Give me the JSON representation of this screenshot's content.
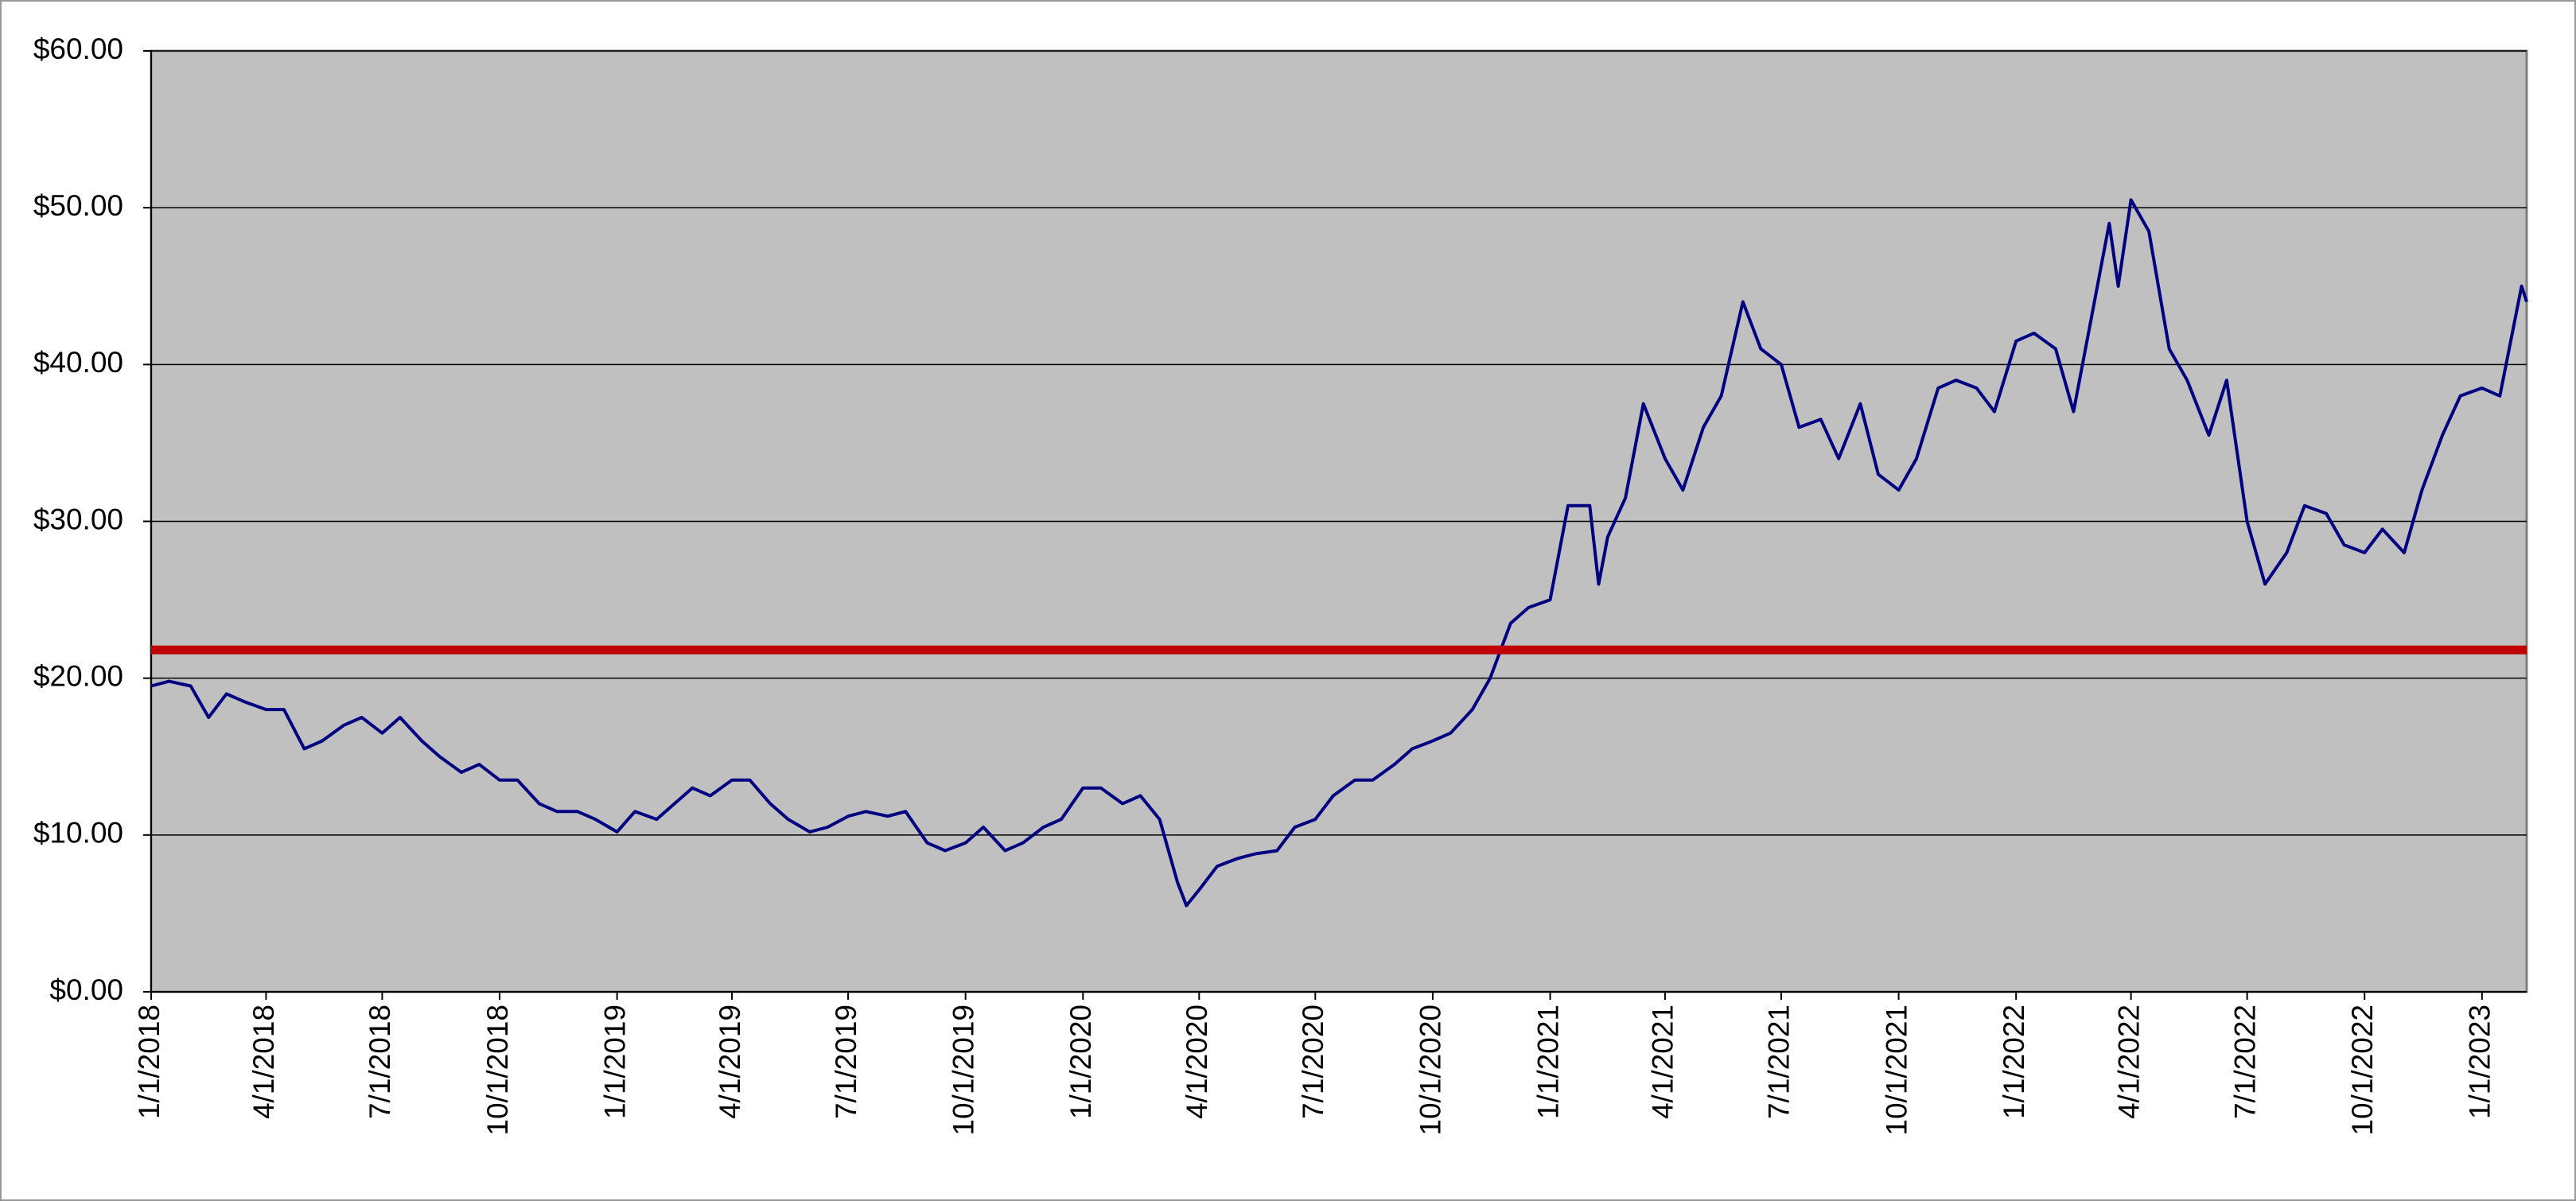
{
  "chart_data": {
    "type": "line",
    "x": [
      "1/1/2018",
      "1/15/2018",
      "2/1/2018",
      "2/15/2018",
      "3/1/2018",
      "3/15/2018",
      "4/1/2018",
      "4/15/2018",
      "5/1/2018",
      "5/15/2018",
      "6/1/2018",
      "6/15/2018",
      "7/1/2018",
      "7/15/2018",
      "8/1/2018",
      "8/15/2018",
      "9/1/2018",
      "9/15/2018",
      "10/1/2018",
      "10/15/2018",
      "11/1/2018",
      "11/15/2018",
      "12/1/2018",
      "12/15/2018",
      "1/1/2019",
      "1/15/2019",
      "2/1/2019",
      "2/15/2019",
      "3/1/2019",
      "3/15/2019",
      "4/1/2019",
      "4/15/2019",
      "5/1/2019",
      "5/15/2019",
      "6/1/2019",
      "6/15/2019",
      "7/1/2019",
      "7/15/2019",
      "8/1/2019",
      "8/15/2019",
      "9/1/2019",
      "9/15/2019",
      "10/1/2019",
      "10/15/2019",
      "11/1/2019",
      "11/15/2019",
      "12/1/2019",
      "12/15/2019",
      "1/1/2020",
      "1/15/2020",
      "2/1/2020",
      "2/15/2020",
      "3/1/2020",
      "3/15/2020",
      "3/22/2020",
      "4/1/2020",
      "4/15/2020",
      "5/1/2020",
      "5/15/2020",
      "6/1/2020",
      "6/15/2020",
      "7/1/2020",
      "7/15/2020",
      "8/1/2020",
      "8/15/2020",
      "9/1/2020",
      "9/15/2020",
      "10/1/2020",
      "10/15/2020",
      "11/1/2020",
      "11/15/2020",
      "12/1/2020",
      "12/15/2020",
      "1/1/2021",
      "1/15/2021",
      "2/1/2021",
      "2/8/2021",
      "2/15/2021",
      "3/1/2021",
      "3/15/2021",
      "4/1/2021",
      "4/15/2021",
      "5/1/2021",
      "5/15/2021",
      "6/1/2021",
      "6/15/2021",
      "7/1/2021",
      "7/15/2021",
      "8/1/2021",
      "8/15/2021",
      "9/1/2021",
      "9/15/2021",
      "10/1/2021",
      "10/15/2021",
      "11/1/2021",
      "11/15/2021",
      "12/1/2021",
      "12/15/2021",
      "1/1/2022",
      "1/15/2022",
      "2/1/2022",
      "2/15/2022",
      "3/1/2022",
      "3/15/2022",
      "3/22/2022",
      "4/1/2022",
      "4/15/2022",
      "5/1/2022",
      "5/15/2022",
      "6/1/2022",
      "6/15/2022",
      "7/1/2022",
      "7/15/2022",
      "8/1/2022",
      "8/15/2022",
      "9/1/2022",
      "9/15/2022",
      "10/1/2022",
      "10/15/2022",
      "11/1/2022",
      "11/15/2022",
      "12/1/2022",
      "12/15/2022",
      "1/1/2023",
      "1/15/2023",
      "2/1/2023",
      "2/5/2023"
    ],
    "series": [
      {
        "color": "#000080",
        "values": [
          19.5,
          19.8,
          19.5,
          17.5,
          19,
          18.5,
          18,
          18,
          15.5,
          16,
          17,
          17.5,
          16.5,
          17.5,
          16,
          15,
          14,
          14.5,
          13.5,
          13.5,
          12,
          11.5,
          11.5,
          11,
          10.2,
          11.5,
          11,
          12,
          13,
          12.5,
          13.5,
          13.5,
          12,
          11,
          10.2,
          10.5,
          11.2,
          11.5,
          11.2,
          11.5,
          9.5,
          9,
          9.5,
          10.5,
          9,
          9.5,
          10.5,
          11,
          13,
          13,
          12,
          12.5,
          11,
          7,
          5.5,
          6.5,
          8,
          8.5,
          8.8,
          9,
          10.5,
          11,
          12.5,
          13.5,
          13.5,
          14.5,
          15.5,
          16,
          16.5,
          18,
          20,
          23.5,
          24.5,
          25,
          31,
          31,
          26,
          29,
          31.5,
          37.5,
          34,
          32,
          36,
          38,
          44,
          41,
          40,
          36,
          36.5,
          34,
          37.5,
          33,
          32,
          34,
          38.5,
          39,
          38.5,
          37,
          41.5,
          42,
          41,
          37,
          43,
          49,
          45,
          50.5,
          48.5,
          41,
          39,
          35.5,
          39,
          30,
          26,
          28,
          31,
          30.5,
          28.5,
          28,
          29.5,
          28,
          32,
          35.5,
          38,
          38.5,
          38,
          45,
          44
        ]
      }
    ],
    "reference_line": {
      "value": 21.8,
      "color": "#c00000"
    },
    "xlim": [
      "1/1/2018",
      "2/5/2023"
    ],
    "xticks": [
      "1/1/2018",
      "4/1/2018",
      "7/1/2018",
      "10/1/2018",
      "1/1/2019",
      "4/1/2019",
      "7/1/2019",
      "10/1/2019",
      "1/1/2020",
      "4/1/2020",
      "7/1/2020",
      "10/1/2020",
      "1/1/2021",
      "4/1/2021",
      "7/1/2021",
      "10/1/2021",
      "1/1/2022",
      "4/1/2022",
      "7/1/2022",
      "10/1/2022",
      "1/1/2023"
    ],
    "ylim": [
      0,
      60
    ],
    "yticks": [
      {
        "value": 0,
        "label": "$0.00"
      },
      {
        "value": 10,
        "label": "$10.00"
      },
      {
        "value": 20,
        "label": "$20.00"
      },
      {
        "value": 30,
        "label": "$30.00"
      },
      {
        "value": 40,
        "label": "$40.00"
      },
      {
        "value": 50,
        "label": "$50.00"
      },
      {
        "value": 60,
        "label": "$60.00"
      }
    ],
    "grid": true
  }
}
